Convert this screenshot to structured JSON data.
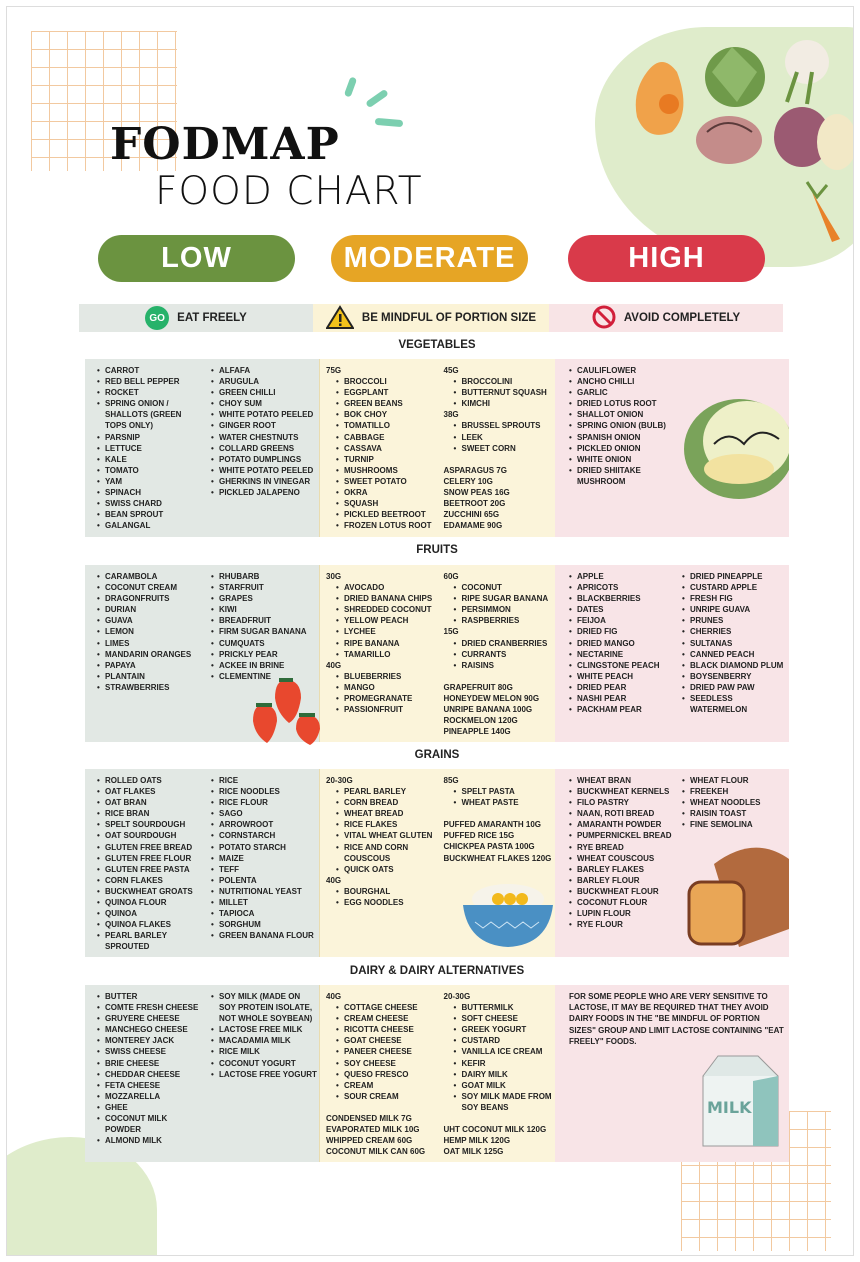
{
  "title": {
    "line1": "FODMAP",
    "line2": "FOOD CHART"
  },
  "levels": [
    {
      "label": "LOW",
      "color": "#6b9340"
    },
    {
      "label": "MODERATE",
      "color": "#e6a525"
    },
    {
      "label": "HIGH",
      "color": "#d93a4a"
    }
  ],
  "legend": [
    {
      "icon": "go-icon",
      "badge": "GO",
      "label": "EAT FREELY"
    },
    {
      "icon": "warning-icon",
      "label": "BE MINDFUL OF PORTION SIZE"
    },
    {
      "icon": "prohibited-icon",
      "label": "AVOID COMPLETELY"
    }
  ],
  "sections": [
    {
      "title": "VEGETABLES",
      "low": [
        [
          "CARROT",
          "RED BELL PEPPER",
          "ROCKET",
          "SPRING ONION / SHALLOTS (GREEN TOPS ONLY)",
          "PARSNIP",
          "LETTUCE",
          "KALE",
          "TOMATO",
          "YAM",
          "SPINACH",
          "SWISS CHARD",
          "BEAN SPROUT",
          "GALANGAL"
        ],
        [
          "ALFAFA",
          "ARUGULA",
          "GREEN CHILLI",
          "CHOY SUM",
          "WHITE POTATO PEELED",
          "GINGER ROOT",
          "WATER CHESTNUTS",
          "COLLARD GREENS",
          "POTATO DUMPLINGS",
          "WHITE POTATO PEELED",
          "GHERKINS IN VINEGAR",
          "PICKLED JALAPENO"
        ]
      ],
      "moderate": [
        [
          {
            "h": "75G"
          },
          {
            "i": "BROCCOLI"
          },
          {
            "i": "EGGPLANT"
          },
          {
            "i": "GREEN BEANS"
          },
          {
            "i": "BOK CHOY"
          },
          {
            "i": "TOMATILLO"
          },
          {
            "i": "CABBAGE"
          },
          {
            "i": "CASSAVA"
          },
          {
            "i": "TURNIP"
          },
          {
            "i": "MUSHROOMS"
          },
          {
            "i": "SWEET POTATO"
          },
          {
            "i": "OKRA"
          },
          {
            "i": "SQUASH"
          },
          {
            "i": "PICKLED BEETROOT"
          },
          {
            "i": "FROZEN LOTUS ROOT"
          }
        ],
        [
          {
            "h": "45G"
          },
          {
            "i": "BROCCOLINI"
          },
          {
            "i": "BUTTERNUT SQUASH"
          },
          {
            "i": "KIMCHI"
          },
          {
            "h": "38G"
          },
          {
            "i": "BRUSSEL SPROUTS"
          },
          {
            "i": "LEEK"
          },
          {
            "i": "SWEET CORN"
          },
          {
            "p": "ASPARAGUS 7G"
          },
          {
            "p": "CELERY 10G"
          },
          {
            "p": "SNOW PEAS 16G"
          },
          {
            "p": "BEETROOT 20G"
          },
          {
            "p": "ZUCCHINI 65G"
          },
          {
            "p": "EDAMAME 90G"
          }
        ]
      ],
      "high": [
        [
          "CAULIFLOWER",
          "ANCHO CHILLI",
          "GARLIC",
          "DRIED LOTUS ROOT",
          "SHALLOT ONION",
          "SPRING ONION (BULB)",
          "SPANISH ONION",
          "PICKLED ONION",
          "WHITE ONION",
          "DRIED SHIITAKE MUSHROOM"
        ]
      ],
      "illustration": "cauliflower"
    },
    {
      "title": "FRUITS",
      "low": [
        [
          "CARAMBOLA",
          "COCONUT CREAM",
          "DRAGONFRUITS",
          "DURIAN",
          "GUAVA",
          "LEMON",
          "LIMES",
          "MANDARIN ORANGES",
          "PAPAYA",
          "PLANTAIN",
          "STRAWBERRIES"
        ],
        [
          "RHUBARB",
          "STARFRUIT",
          "GRAPES",
          "KIWI",
          "BREADFRUIT",
          "FIRM SUGAR BANANA",
          "CUMQUATS",
          "PRICKLY PEAR",
          "ACKEE IN BRINE",
          "CLEMENTINE"
        ]
      ],
      "moderate": [
        [
          {
            "h": "30G"
          },
          {
            "i": "AVOCADO"
          },
          {
            "i": "DRIED BANANA CHIPS"
          },
          {
            "i": "SHREDDED COCONUT"
          },
          {
            "i": "YELLOW PEACH"
          },
          {
            "i": "LYCHEE"
          },
          {
            "i": "RIPE BANANA"
          },
          {
            "i": "TAMARILLO"
          },
          {
            "h": "40G"
          },
          {
            "i": "BLUEBERRIES"
          },
          {
            "i": "MANGO"
          },
          {
            "i": "PROMEGRANATE"
          },
          {
            "i": "PASSIONFRUIT"
          }
        ],
        [
          {
            "h": "60G"
          },
          {
            "i": "COCONUT"
          },
          {
            "i": "RIPE SUGAR BANANA"
          },
          {
            "i": "PERSIMMON"
          },
          {
            "i": "RASPBERRIES"
          },
          {
            "h": "15G"
          },
          {
            "i": "DRIED CRANBERRIES"
          },
          {
            "i": "CURRANTS"
          },
          {
            "i": "RAISINS"
          },
          {
            "p": "GRAPEFRUIT 80G"
          },
          {
            "p": "HONEYDEW MELON 90G"
          },
          {
            "p": "UNRIPE BANANA 100G"
          },
          {
            "p": "ROCKMELON 120G"
          },
          {
            "p": "PINEAPPLE 140G"
          }
        ]
      ],
      "high": [
        [
          "APPLE",
          "APRICOTS",
          "BLACKBERRIES",
          "DATES",
          "FEIJOA",
          "DRIED FIG",
          "DRIED MANGO",
          "NECTARINE",
          "CLINGSTONE PEACH",
          "WHITE PEACH",
          "DRIED PEAR",
          "NASHI PEAR",
          "PACKHAM PEAR"
        ],
        [
          "DRIED PINEAPPLE",
          "CUSTARD APPLE",
          "FRESH FIG",
          "UNRIPE GUAVA",
          "PRUNES",
          "CHERRIES",
          "SULTANAS",
          "CANNED PEACH",
          "BLACK DIAMOND PLUM",
          "BOYSENBERRY",
          "DRIED PAW PAW",
          "SEEDLESS WATERMELON"
        ]
      ],
      "illustration": "strawberries"
    },
    {
      "title": "GRAINS",
      "low": [
        [
          "ROLLED OATS",
          "OAT FLAKES",
          "OAT BRAN",
          "RICE BRAN",
          "SPELT SOURDOUGH",
          "OAT SOURDOUGH",
          "GLUTEN FREE BREAD",
          "GLUTEN FREE FLOUR",
          "GLUTEN FREE PASTA",
          "CORN FLAKES",
          "BUCKWHEAT GROATS",
          "QUINOA FLOUR",
          "QUINOA",
          "QUINOA FLAKES",
          "PEARL BARLEY SPROUTED"
        ],
        [
          "RICE",
          "RICE NOODLES",
          "RICE FLOUR",
          "SAGO",
          "ARROWROOT",
          "CORNSTARCH",
          "POTATO STARCH",
          "MAIZE",
          "TEFF",
          "POLENTA",
          "NUTRITIONAL YEAST",
          "MILLET",
          "TAPIOCA",
          "SORGHUM",
          "GREEN BANANA FLOUR"
        ]
      ],
      "moderate": [
        [
          {
            "h": "20-30G"
          },
          {
            "i": "PEARL BARLEY"
          },
          {
            "i": "CORN BREAD"
          },
          {
            "i": "WHEAT BREAD"
          },
          {
            "i": "RICE FLAKES"
          },
          {
            "i": "VITAL WHEAT GLUTEN"
          },
          {
            "i": "RICE AND CORN COUSCOUS"
          },
          {
            "i": "QUICK OATS"
          },
          {
            "h": "40G"
          },
          {
            "i": "BOURGHAL"
          },
          {
            "i": "EGG NOODLES"
          }
        ],
        [
          {
            "h": "85G"
          },
          {
            "i": "SPELT PASTA"
          },
          {
            "i": "WHEAT PASTE"
          },
          {
            "p": "PUFFED AMARANTH 10G"
          },
          {
            "p": "PUFFED RICE 15G"
          },
          {
            "p": "CHICKPEA PASTA 100G"
          },
          {
            "p": "BUCKWHEAT FLAKES 120G"
          }
        ]
      ],
      "high": [
        [
          "WHEAT BRAN",
          "BUCKWHEAT KERNELS",
          "FILO PASTRY",
          "NAAN, ROTI BREAD",
          "AMARANTH POWDER",
          "PUMPERNICKEL BREAD",
          "RYE BREAD",
          "WHEAT COUSCOUS",
          "BARLEY FLAKES",
          "BARLEY FLOUR",
          "BUCKWHEAT FLOUR",
          "COCONUT FLOUR",
          "LUPIN FLOUR",
          "RYE FLOUR"
        ],
        [
          "WHEAT FLOUR",
          "FREEKEH",
          "WHEAT NOODLES",
          "RAISIN TOAST",
          "FINE SEMOLINA"
        ]
      ],
      "illustration": "bowl-and-bread"
    },
    {
      "title": "DAIRY & DAIRY ALTERNATIVES",
      "low": [
        [
          "BUTTER",
          "COMTE FRESH CHEESE",
          "GRUYERE CHEESE",
          "MANCHEGO CHEESE",
          "MONTEREY JACK",
          "SWISS CHEESE",
          "BRIE CHEESE",
          "CHEDDAR CHEESE",
          "FETA CHEESE",
          "MOZZARELLA",
          "GHEE",
          "COCONUT MILK POWDER",
          "ALMOND MILK"
        ],
        [
          "SOY MILK (MADE ON SOY PROTEIN ISOLATE, NOT WHOLE SOYBEAN)",
          "LACTOSE FREE MILK",
          "MACADAMIA MILK",
          "RICE MILK",
          "COCONUT YOGURT",
          "LACTOSE FREE YOGURT"
        ]
      ],
      "moderate": [
        [
          {
            "h": "40G"
          },
          {
            "i": "COTTAGE CHEESE"
          },
          {
            "i": "CREAM CHEESE"
          },
          {
            "i": "RICOTTA CHEESE"
          },
          {
            "i": "GOAT CHEESE"
          },
          {
            "i": "PANEER CHEESE"
          },
          {
            "i": "SOY CHEESE"
          },
          {
            "i": "QUESO FRESCO"
          },
          {
            "i": "CREAM"
          },
          {
            "i": "SOUR CREAM"
          },
          {
            "p": "CONDENSED MILK 7G"
          },
          {
            "p": "EVAPORATED MILK 10G"
          },
          {
            "p": "WHIPPED CREAM 60G"
          },
          {
            "p": "COCONUT MILK CAN 60G"
          }
        ],
        [
          {
            "h": "20-30G"
          },
          {
            "i": "BUTTERMILK"
          },
          {
            "i": "SOFT CHEESE"
          },
          {
            "i": "GREEK YOGURT"
          },
          {
            "i": "CUSTARD"
          },
          {
            "i": "VANILLA ICE CREAM"
          },
          {
            "i": "KEFIR"
          },
          {
            "i": "DAIRY MILK"
          },
          {
            "i": "GOAT MILK"
          },
          {
            "i": "SOY MILK MADE FROM SOY BEANS"
          },
          {
            "p": "UHT COCONUT MILK 120G"
          },
          {
            "p": "HEMP MILK 120G"
          },
          {
            "p": "OAT MILK 125G"
          }
        ]
      ],
      "high_note": "FOR SOME PEOPLE WHO ARE VERY SENSITIVE TO LACTOSE, IT MAY BE REQUIRED THAT THEY AVOID DAIRY FOODS IN THE \"BE MINDFUL OF PORTION SIZES\" GROUP AND LIMIT LACTOSE CONTAINING \"EAT FREELY\" FOODS.",
      "milk_carton_text": "MILK",
      "illustration": "milk-carton"
    }
  ]
}
